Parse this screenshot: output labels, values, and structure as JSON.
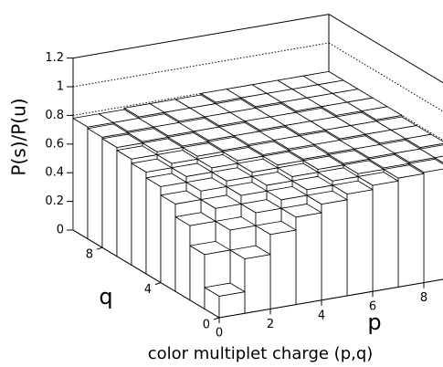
{
  "chart_data": {
    "type": "lego3d",
    "xlabel": "p",
    "ylabel": "q",
    "zlabel": "P(s)/P(u)",
    "title": "color multiplet charge (p,q)",
    "x": [
      0,
      1,
      2,
      3,
      4,
      5,
      6,
      7,
      8,
      9
    ],
    "y": [
      0,
      1,
      2,
      3,
      4,
      5,
      6,
      7,
      8,
      9
    ],
    "values": [
      [
        0.15,
        0.38,
        0.52,
        0.61,
        0.67,
        0.71,
        0.74,
        0.76,
        0.77,
        0.78
      ],
      [
        0.38,
        0.52,
        0.61,
        0.67,
        0.71,
        0.74,
        0.76,
        0.77,
        0.78,
        0.78
      ],
      [
        0.52,
        0.61,
        0.67,
        0.71,
        0.74,
        0.76,
        0.77,
        0.78,
        0.78,
        0.79
      ],
      [
        0.61,
        0.67,
        0.71,
        0.74,
        0.76,
        0.77,
        0.78,
        0.78,
        0.79,
        0.79
      ],
      [
        0.67,
        0.71,
        0.74,
        0.76,
        0.77,
        0.78,
        0.78,
        0.79,
        0.79,
        0.79
      ],
      [
        0.71,
        0.74,
        0.76,
        0.77,
        0.78,
        0.78,
        0.79,
        0.79,
        0.79,
        0.8
      ],
      [
        0.74,
        0.76,
        0.77,
        0.78,
        0.78,
        0.79,
        0.79,
        0.79,
        0.8,
        0.8
      ],
      [
        0.76,
        0.77,
        0.78,
        0.78,
        0.79,
        0.79,
        0.79,
        0.8,
        0.8,
        0.8
      ],
      [
        0.77,
        0.78,
        0.78,
        0.79,
        0.79,
        0.79,
        0.8,
        0.8,
        0.8,
        0.8
      ],
      [
        0.78,
        0.78,
        0.79,
        0.79,
        0.79,
        0.8,
        0.8,
        0.8,
        0.8,
        0.8
      ]
    ],
    "color": "#ffffff",
    "xlim": [
      0,
      10
    ],
    "xticks": [
      0,
      2,
      4,
      6,
      8
    ],
    "ylim": [
      0,
      10
    ],
    "yticks": [
      0,
      4,
      8
    ],
    "zlim": [
      0,
      1.2
    ],
    "zticks": [
      0,
      0.2,
      0.4,
      0.6,
      0.8,
      1,
      1.2
    ],
    "grid": true
  }
}
